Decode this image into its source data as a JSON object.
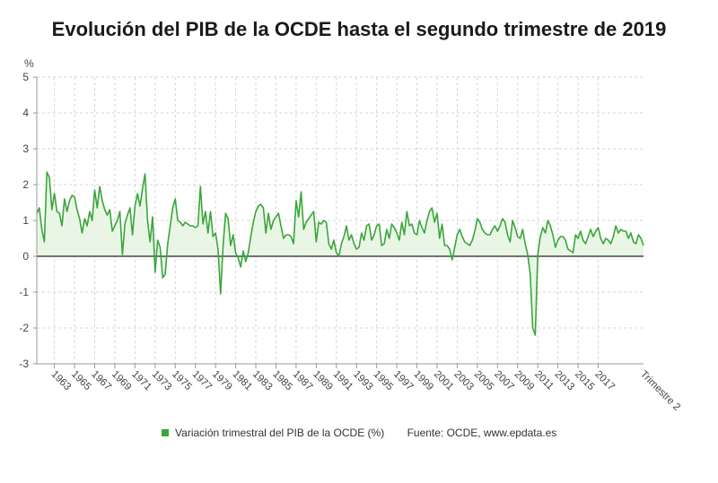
{
  "chart_data": {
    "type": "line",
    "title": "Evolución del PIB de la OCDE hasta el segundo trimestre de 2019",
    "ylabel": "%",
    "xlabel": "Trimestre 2",
    "ylim": [
      -3,
      5
    ],
    "yticks": [
      5,
      4,
      3,
      2,
      1,
      0,
      -1,
      -2,
      -3
    ],
    "x_start": "1961 Q2",
    "x_end": "2019 Q2",
    "x_ticklabels": [
      "1963",
      "1965",
      "1967",
      "1969",
      "1971",
      "1973",
      "1975",
      "1977",
      "1979",
      "1981",
      "1983",
      "1985",
      "1987",
      "1989",
      "1991",
      "1993",
      "1995",
      "1997",
      "1999",
      "2001",
      "2003",
      "2005",
      "2007",
      "2009",
      "2011",
      "2013",
      "2015",
      "2017"
    ],
    "grid": true,
    "legend_position": "bottom",
    "line_color": "#3aa63a",
    "fill_color": "#e9f6e6",
    "series": [
      {
        "name": "Variación trimestral del PIB de la OCDE (%)",
        "values": [
          1.2,
          1.35,
          0.75,
          0.4,
          2.35,
          2.2,
          1.3,
          1.75,
          1.25,
          1.2,
          0.85,
          1.6,
          1.25,
          1.55,
          1.7,
          1.65,
          1.3,
          1.05,
          0.65,
          1.05,
          0.85,
          1.25,
          1.0,
          1.85,
          1.35,
          1.95,
          1.55,
          1.3,
          1.15,
          1.3,
          0.7,
          0.85,
          1.0,
          1.25,
          0.05,
          0.9,
          1.15,
          1.35,
          0.6,
          1.4,
          1.75,
          1.4,
          1.9,
          2.3,
          1.0,
          0.4,
          1.1,
          -0.45,
          0.45,
          0.25,
          -0.6,
          -0.5,
          0.35,
          0.85,
          1.35,
          1.6,
          1.0,
          0.95,
          0.85,
          0.95,
          0.9,
          0.85,
          0.85,
          0.8,
          0.85,
          1.95,
          0.9,
          1.25,
          0.65,
          1.25,
          0.55,
          0.65,
          0.2,
          -1.05,
          0.3,
          1.2,
          1.05,
          0.3,
          0.6,
          0.1,
          -0.05,
          -0.3,
          0.15,
          -0.15,
          0.1,
          0.55,
          0.95,
          1.25,
          1.4,
          1.45,
          1.35,
          0.65,
          1.2,
          0.75,
          1.0,
          1.1,
          1.2,
          0.85,
          0.5,
          0.6,
          0.6,
          0.55,
          0.35,
          1.55,
          1.1,
          1.8,
          0.75,
          0.95,
          1.05,
          1.15,
          1.25,
          0.4,
          0.95,
          0.9,
          1.0,
          0.95,
          0.35,
          0.2,
          0.45,
          0.1,
          0.0,
          0.35,
          0.55,
          0.85,
          0.45,
          0.6,
          0.35,
          0.2,
          0.25,
          0.65,
          0.45,
          0.85,
          0.9,
          0.45,
          0.6,
          0.85,
          0.9,
          0.3,
          0.35,
          0.75,
          0.5,
          0.9,
          0.8,
          0.65,
          0.45,
          0.95,
          0.6,
          1.25,
          0.85,
          0.9,
          0.65,
          0.6,
          1.0,
          0.8,
          0.65,
          1.0,
          1.25,
          1.35,
          0.95,
          1.2,
          0.5,
          0.9,
          0.3,
          0.3,
          0.2,
          -0.1,
          0.25,
          0.6,
          0.75,
          0.55,
          0.4,
          0.35,
          0.3,
          0.45,
          0.7,
          1.05,
          0.95,
          0.75,
          0.65,
          0.6,
          0.6,
          0.75,
          0.85,
          0.7,
          0.85,
          1.05,
          0.95,
          0.6,
          0.4,
          1.0,
          0.8,
          0.55,
          0.5,
          0.75,
          0.35,
          0.05,
          -0.5,
          -2.0,
          -2.2,
          0.05,
          0.55,
          0.8,
          0.65,
          1.0,
          0.85,
          0.6,
          0.25,
          0.45,
          0.55,
          0.55,
          0.45,
          0.2,
          0.15,
          0.1,
          0.6,
          0.5,
          0.7,
          0.45,
          0.35,
          0.55,
          0.75,
          0.55,
          0.7,
          0.8,
          0.5,
          0.35,
          0.5,
          0.45,
          0.35,
          0.55,
          0.85,
          0.65,
          0.75,
          0.7,
          0.7,
          0.5,
          0.65,
          0.4,
          0.35,
          0.6,
          0.5,
          0.3
        ]
      }
    ]
  },
  "legend": {
    "label": "Variación trimestral del PIB de la OCDE (%)",
    "source": "Fuente: OCDE, www.epdata.es"
  }
}
